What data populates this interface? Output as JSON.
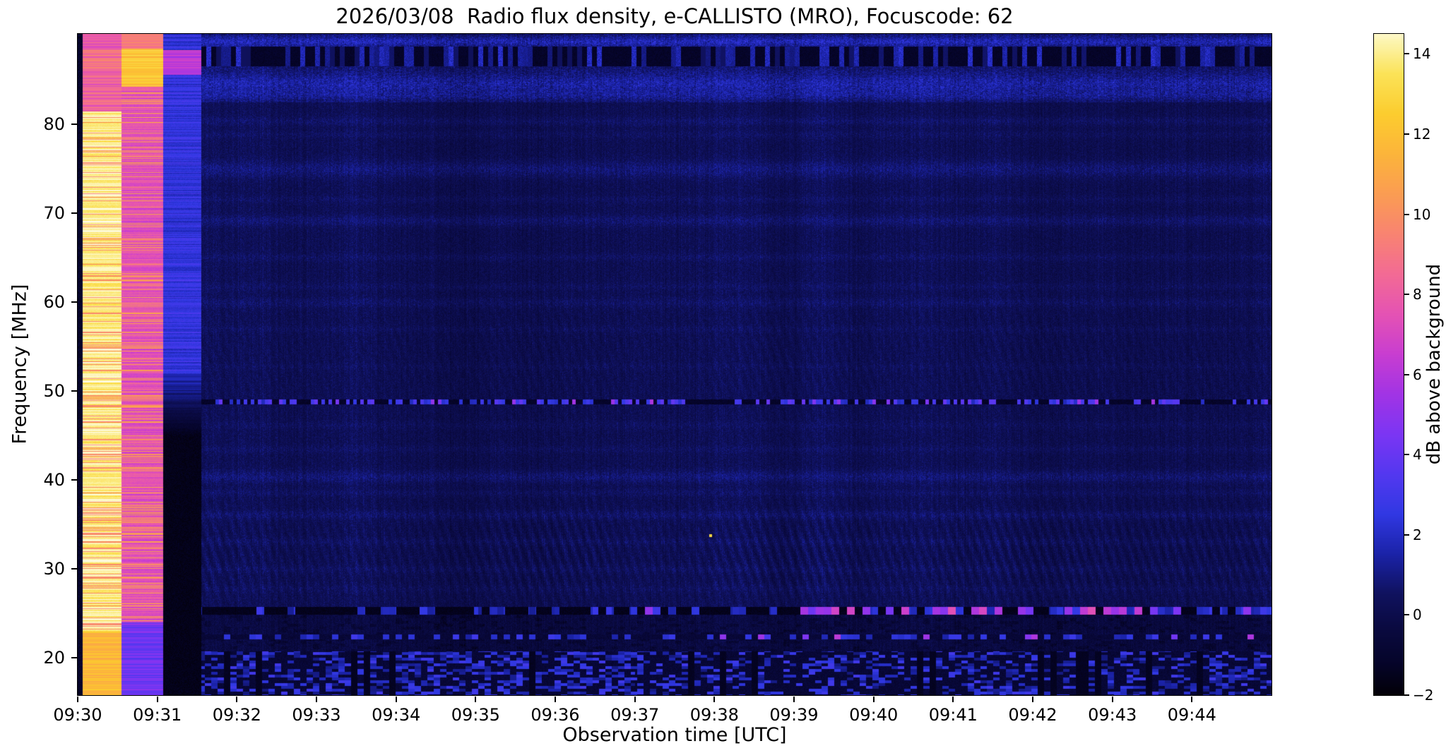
{
  "chart_data": {
    "type": "heatmap",
    "title": "2026/03/08  Radio flux density, e-CALLISTO (MRO), Focuscode: 62",
    "xlabel": "Observation time [UTC]",
    "ylabel": "Frequency [MHz]",
    "x_start_time_utc": "09:30",
    "x_tick_labels": [
      "09:30",
      "09:31",
      "09:32",
      "09:33",
      "09:34",
      "09:35",
      "09:36",
      "09:37",
      "09:38",
      "09:39",
      "09:40",
      "09:41",
      "09:42",
      "09:43",
      "09:44"
    ],
    "x_tick_interval_s": 60,
    "x_range_seconds": [
      0,
      900
    ],
    "y_tick_values": [
      20,
      30,
      40,
      50,
      60,
      70,
      80
    ],
    "y_tick_labels": [
      "20",
      "30",
      "40",
      "50",
      "60",
      "70",
      "80"
    ],
    "y_range_mhz": [
      15.8,
      90.2
    ],
    "colorbar": {
      "label": "dB above background",
      "tick_values": [
        -2,
        0,
        2,
        4,
        6,
        8,
        10,
        12,
        14
      ],
      "tick_labels": [
        "−2",
        "0",
        "2",
        "4",
        "6",
        "8",
        "10",
        "12",
        "14"
      ],
      "value_range": [
        -2,
        14.5
      ]
    },
    "colormap": [
      [
        -2.5,
        "#000002"
      ],
      [
        -2.0,
        "#030109"
      ],
      [
        -1.2,
        "#06052b"
      ],
      [
        -0.4,
        "#0a0a3f"
      ],
      [
        0.5,
        "#10125e"
      ],
      [
        1.5,
        "#1b23a8"
      ],
      [
        2.5,
        "#3138e3"
      ],
      [
        3.5,
        "#5438f0"
      ],
      [
        4.5,
        "#7c36f4"
      ],
      [
        5.5,
        "#a234e5"
      ],
      [
        6.5,
        "#c93ed1"
      ],
      [
        7.5,
        "#e553b4"
      ],
      [
        8.5,
        "#f36b95"
      ],
      [
        9.5,
        "#f98472"
      ],
      [
        10.5,
        "#fb9d53"
      ],
      [
        11.5,
        "#fcb53b"
      ],
      [
        12.5,
        "#fccd2f"
      ],
      [
        13.5,
        "#fbe358"
      ],
      [
        14.3,
        "#fdf5b0"
      ],
      [
        14.8,
        "#fefdf0"
      ]
    ],
    "features": {
      "background_level_db": 0.5,
      "edge_black_s": [
        0,
        3.5
      ],
      "stripes": [
        {
          "t": [
            3.5,
            33
          ],
          "kind": "saturated-white-calibration",
          "level_db": 14
        },
        {
          "t": [
            33,
            64
          ],
          "kind": "magenta-pink-calibration",
          "level_db": 7
        },
        {
          "t": [
            64,
            93
          ],
          "kind": "blue-over-black-calibration",
          "level_db": 2
        }
      ],
      "lines": {
        "top_band_mhz": [
          86.6,
          88.8
        ],
        "line49_mhz": 48.85,
        "band25_mhz": 25.35,
        "line22_mhz": 22.4,
        "bottom_patch_max_mhz": 20.8,
        "burst_start_s": 555,
        "burst_level_db": 7
      },
      "hot_pixel": {
        "s": 477,
        "f_mhz": 33.8,
        "level_db": 13
      }
    }
  }
}
